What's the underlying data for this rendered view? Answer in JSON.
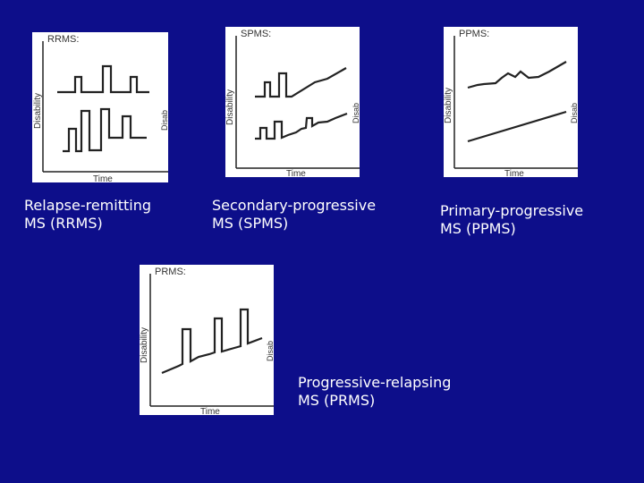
{
  "panels": {
    "rrms": {
      "tag": "RRMS:",
      "ylabel": "Disability",
      "xlabel": "Time",
      "caption": [
        "Relapse-remitting",
        "MS (RRMS)"
      ]
    },
    "spms": {
      "tag": "SPMS:",
      "ylabel": "Disability",
      "xlabel": "Time",
      "caption": [
        "Secondary-progressive",
        "MS (SPMS)"
      ]
    },
    "ppms": {
      "tag": "PPMS:",
      "ylabel": "Disability",
      "xlabel": "Time",
      "caption": [
        "Primary-progressive",
        "MS (PPMS)"
      ]
    },
    "prms": {
      "tag": "PRMS:",
      "ylabel": "Disability",
      "xlabel": "Time",
      "caption": [
        "Progressive-relapsing",
        "MS (PRMS)"
      ]
    }
  },
  "colors": {
    "background": "#0d0e8a",
    "panel": "#ffffff",
    "ink": "#222222",
    "caption": "#ffffff"
  }
}
